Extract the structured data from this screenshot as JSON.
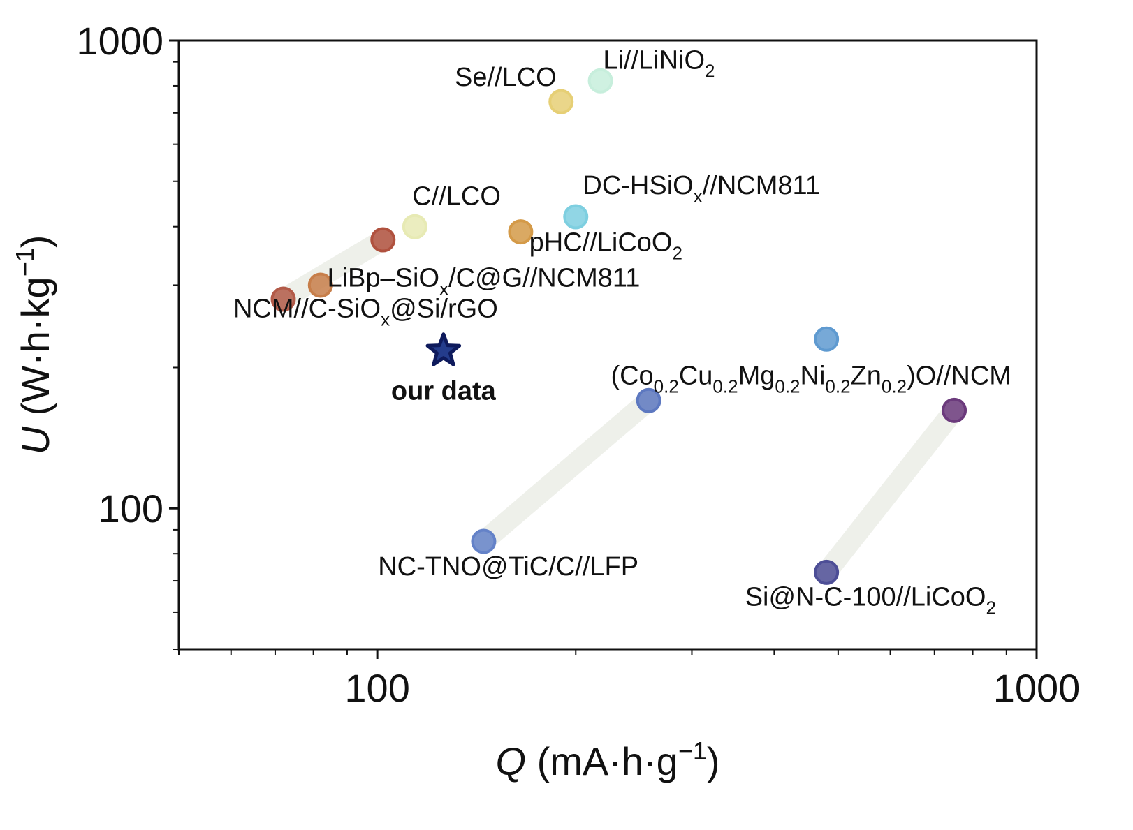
{
  "chart_data": {
    "type": "scatter",
    "x_scale": "log",
    "y_scale": "log",
    "xlim": [
      50,
      1000
    ],
    "ylim": [
      50,
      1000
    ],
    "xlabel": {
      "var": "Q",
      "unit_open": " (mA·h·g",
      "sup": "−1",
      "unit_close": ")"
    },
    "ylabel": {
      "var": "U",
      "unit_open": " (W·h·kg",
      "sup": "−1",
      "unit_close": ")"
    },
    "x_ticks": [
      {
        "value": 100,
        "label": "100"
      },
      {
        "value": 1000,
        "label": "1000"
      }
    ],
    "y_ticks": [
      {
        "value": 100,
        "label": "100"
      },
      {
        "value": 1000,
        "label": "1000"
      }
    ],
    "points": [
      {
        "id": "li-linio2",
        "x": 218,
        "y": 820,
        "color": "#c7eedc"
      },
      {
        "id": "se-lco",
        "x": 190,
        "y": 740,
        "color": "#e6cf75"
      },
      {
        "id": "dc-hsiox",
        "x": 200,
        "y": 420,
        "color": "#7ecfe0"
      },
      {
        "id": "c-lco",
        "x": 114,
        "y": 400,
        "color": "#e7eab4"
      },
      {
        "id": "phc-licoo2",
        "x": 165,
        "y": 390,
        "color": "#d49a48"
      },
      {
        "id": "c-siox-upper",
        "x": 102,
        "y": 375,
        "color": "#b0513e"
      },
      {
        "id": "libp-siox",
        "x": 82,
        "y": 300,
        "color": "#c77e4a"
      },
      {
        "id": "ncm-c-siox",
        "x": 72,
        "y": 280,
        "color": "#b25a48"
      },
      {
        "id": "hec-upper",
        "x": 480,
        "y": 230,
        "color": "#5f9ad0"
      },
      {
        "id": "co-cu-mg-upper",
        "x": 258,
        "y": 170,
        "color": "#5d78c0"
      },
      {
        "id": "si-n-c-upper",
        "x": 750,
        "y": 162,
        "color": "#6b3a7c"
      },
      {
        "id": "nc-tno",
        "x": 145,
        "y": 85,
        "color": "#6482c8"
      },
      {
        "id": "si-n-c-lower",
        "x": 480,
        "y": 73,
        "color": "#4d4e96"
      }
    ],
    "star": {
      "label": "our data",
      "x": 126,
      "y": 217,
      "color": "#0e1a5c"
    },
    "connectors": [
      {
        "from": [
          72,
          280
        ],
        "to": [
          102,
          375
        ]
      },
      {
        "from": [
          145,
          85
        ],
        "to": [
          258,
          170
        ]
      },
      {
        "from": [
          480,
          73
        ],
        "to": [
          750,
          162
        ]
      }
    ],
    "labels": [
      {
        "id": "li-linio2",
        "x": 220,
        "y": 870,
        "anchor": "start",
        "parts": [
          {
            "t": "Li//LiNiO"
          },
          {
            "t": "2",
            "sub": true
          }
        ]
      },
      {
        "id": "se-lco",
        "x": 187,
        "y": 800,
        "anchor": "end",
        "parts": [
          {
            "t": "Se//LCO"
          }
        ]
      },
      {
        "id": "dc-hsiox",
        "x": 205,
        "y": 470,
        "anchor": "start",
        "parts": [
          {
            "t": "DC-HSiO"
          },
          {
            "t": "x",
            "sub": true
          },
          {
            "t": "//NCM811"
          }
        ]
      },
      {
        "id": "c-lco",
        "x": 113,
        "y": 445,
        "anchor": "start",
        "parts": [
          {
            "t": "C//LCO"
          }
        ]
      },
      {
        "id": "phc-licoo2",
        "x": 170,
        "y": 355,
        "anchor": "start",
        "parts": [
          {
            "t": "pHC//LiCoO"
          },
          {
            "t": "2",
            "sub": true
          }
        ]
      },
      {
        "id": "libp-siox",
        "x": 145,
        "y": 298,
        "anchor": "middle",
        "parts": [
          {
            "t": "LiBp–SiO"
          },
          {
            "t": "x",
            "sub": true
          },
          {
            "t": "/C@G//NCM811"
          }
        ]
      },
      {
        "id": "ncm-c-siox",
        "x": 96,
        "y": 256,
        "anchor": "middle",
        "parts": [
          {
            "t": "NCM//C-SiO"
          },
          {
            "t": "x",
            "sub": true
          },
          {
            "t": "@Si/rGO"
          }
        ]
      },
      {
        "id": "co-cu-mg",
        "x": 455,
        "y": 184,
        "anchor": "middle",
        "parts": [
          {
            "t": "(Co"
          },
          {
            "t": "0.2",
            "sub": true
          },
          {
            "t": "Cu"
          },
          {
            "t": "0.2",
            "sub": true
          },
          {
            "t": "Mg"
          },
          {
            "t": "0.2",
            "sub": true
          },
          {
            "t": "Ni"
          },
          {
            "t": "0.2",
            "sub": true
          },
          {
            "t": "Zn"
          },
          {
            "t": "0.2",
            "sub": true
          },
          {
            "t": ")O//NCM"
          }
        ]
      },
      {
        "id": "nc-tno",
        "x": 158,
        "y": 72,
        "anchor": "middle",
        "parts": [
          {
            "t": "NC-TNO@TiC/C//LFP"
          }
        ]
      },
      {
        "id": "si-n-c",
        "x": 560,
        "y": 62,
        "anchor": "middle",
        "parts": [
          {
            "t": "Si@N-C-100//LiCoO"
          },
          {
            "t": "2",
            "sub": true
          }
        ]
      }
    ]
  }
}
